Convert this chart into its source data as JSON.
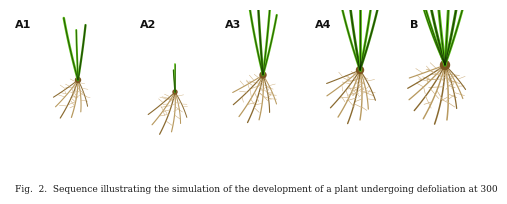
{
  "background_color": "#ffffff",
  "panel_labels": [
    "A1",
    "A2",
    "A3",
    "A4",
    "B"
  ],
  "label_fontsize": 8,
  "caption": "Fig.  2.  Sequence illustrating the simulation of the development of a plant undergoing defoliation at 300",
  "caption_fontsize": 6.5,
  "fig_width": 4.74,
  "fig_height": 1.83,
  "leaf_green_bright": "#55bb10",
  "leaf_green_mid": "#3a8a08",
  "leaf_dark": "#0a1f00",
  "root_tan": "#b89a60",
  "root_brown": "#8a6a30",
  "root_light": "#cdb080",
  "crown_color": "#7a5520",
  "stem_color": "#2a3a10"
}
